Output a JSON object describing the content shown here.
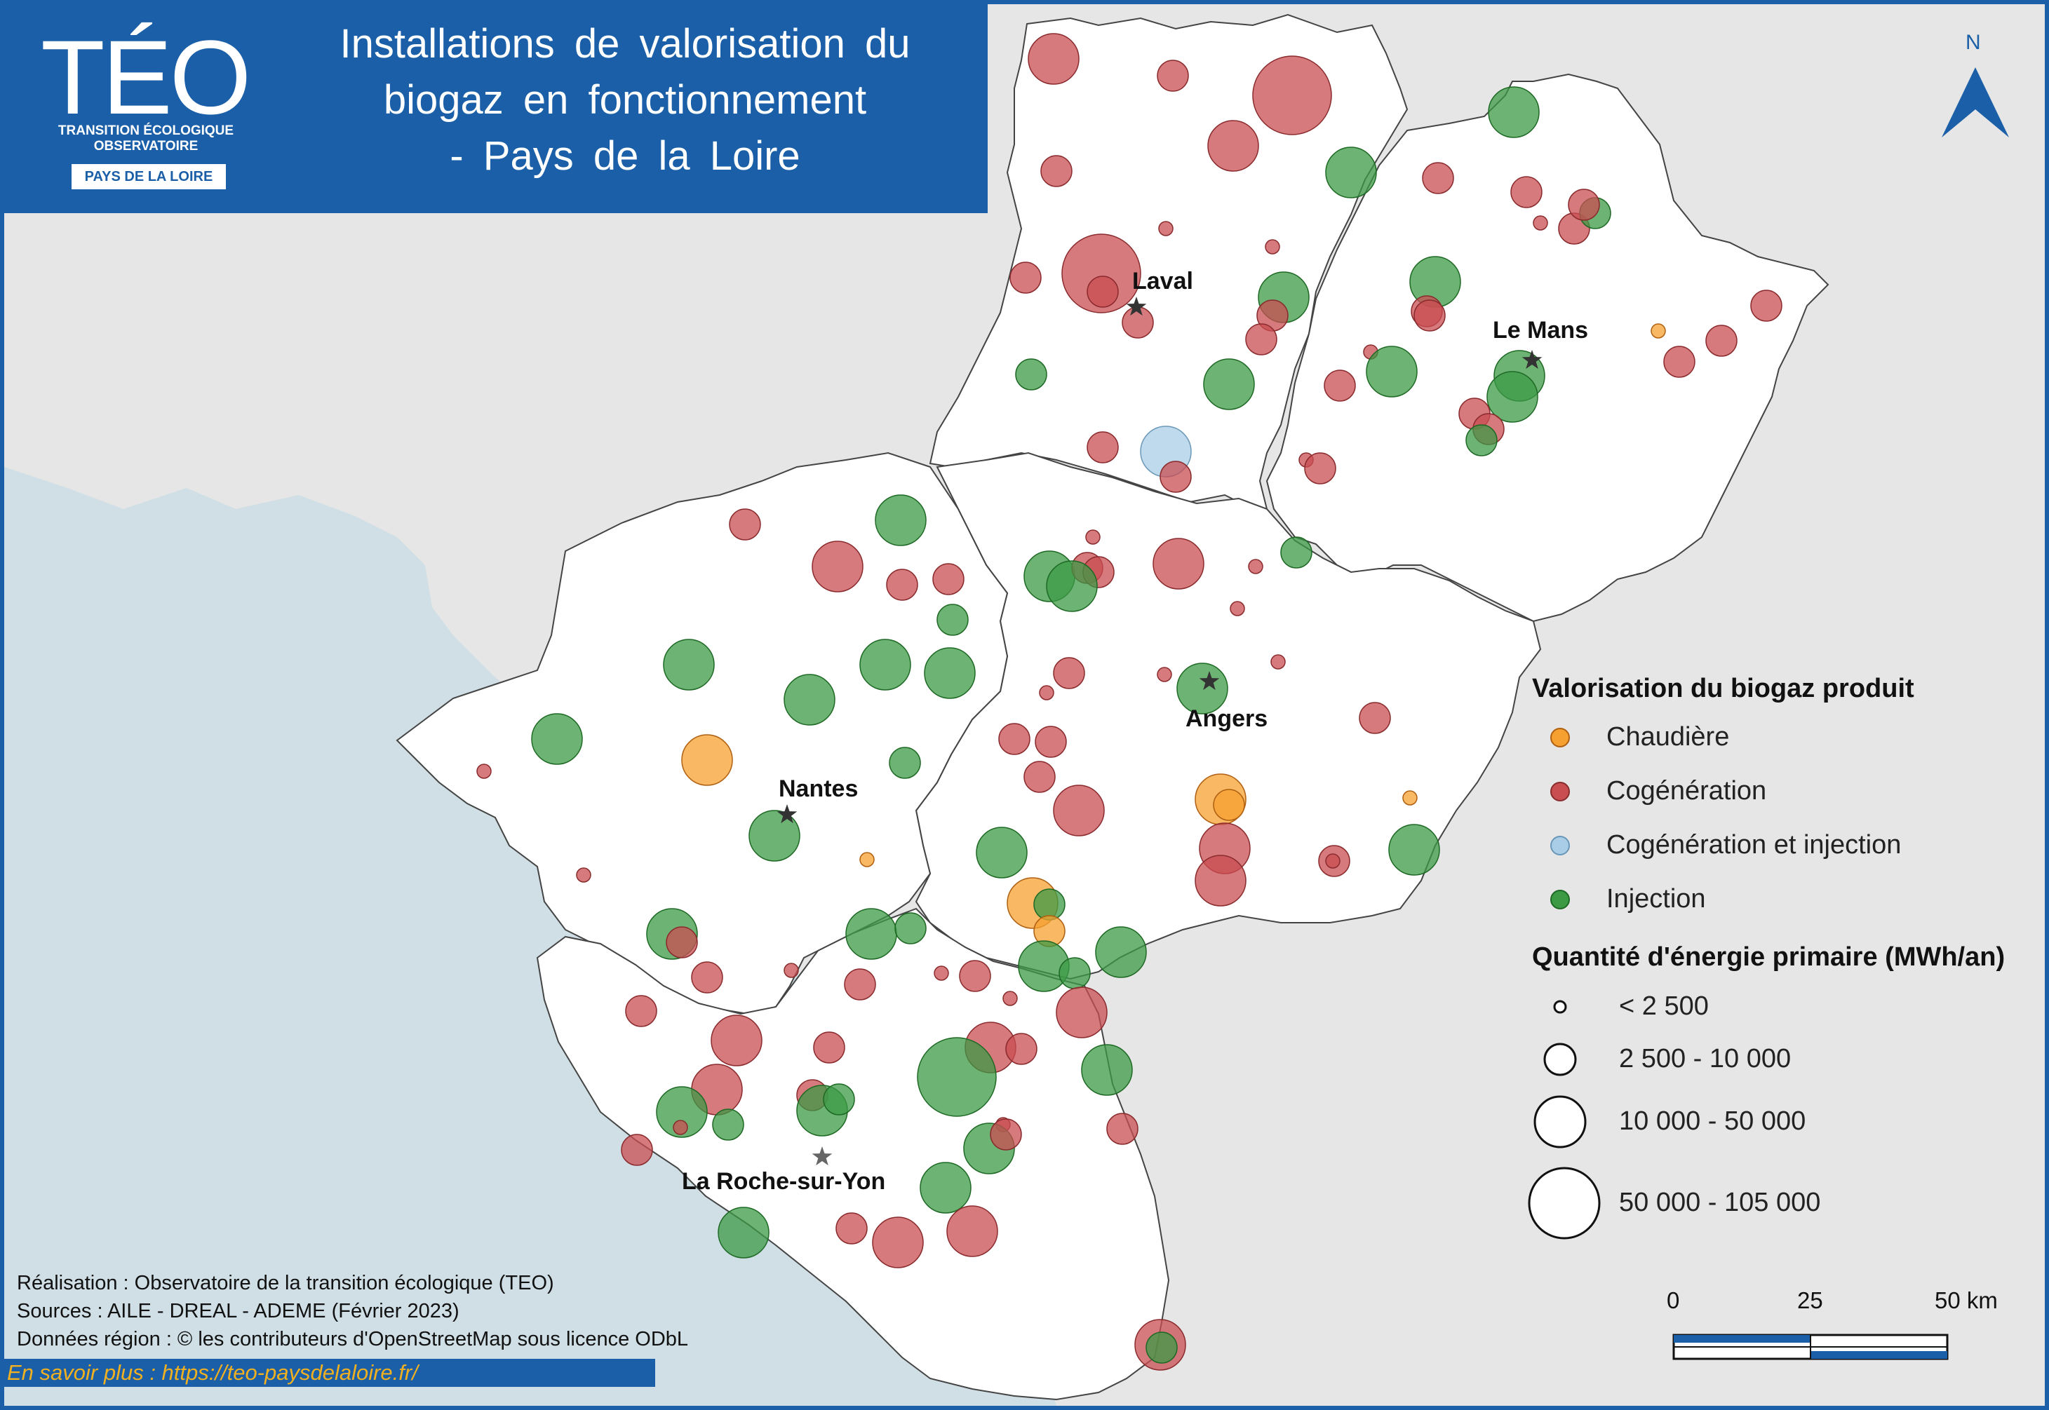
{
  "header": {
    "logo": "TÉO",
    "logo_sub1": "TRANSITION ÉCOLOGIQUE",
    "logo_sub2": "OBSERVATOIRE",
    "logo_region": "PAYS DE LA LOIRE",
    "title_lines": [
      "Installations de valorisation du",
      "biogaz en fonctionnement",
      "- Pays de la Loire"
    ]
  },
  "north_label": "N",
  "cities": [
    {
      "name": "Laval",
      "star_fill": "#333333"
    },
    {
      "name": "Le Mans",
      "star_fill": "#333333"
    },
    {
      "name": "Angers",
      "star_fill": "#333333"
    },
    {
      "name": "Nantes",
      "star_fill": "#333333"
    },
    {
      "name": "La Roche-sur-Yon",
      "star_fill": "#666666"
    }
  ],
  "legend": {
    "type_title": "Valorisation du biogaz produit",
    "types": [
      {
        "label": "Chaudière",
        "color": "#f5a030"
      },
      {
        "label": "Cogénération",
        "color": "#c94e52"
      },
      {
        "label": "Cogénération et injection",
        "color": "#a9cde6"
      },
      {
        "label": "Injection",
        "color": "#3c9a45"
      }
    ],
    "size_title": "Quantité d'énergie primaire (MWh/an)",
    "sizes": [
      "< 2 500",
      "2 500 - 10 000",
      "10 000 - 50 000",
      "50 000 - 105 000"
    ]
  },
  "scale_bar": {
    "labels": [
      "0",
      "25",
      "50 km"
    ]
  },
  "credits": [
    "Réalisation : Observatoire de la transition écologique (TEO)",
    "Sources : AILE - DREAL - ADEME (Février 2023)",
    "Données région : © les contributeurs d'OpenStreetMap sous licence ODbL"
  ],
  "more_link": "En savoir plus : https://teo-paysdelaloire.fr/",
  "colors": {
    "frame": "#1a5fa8",
    "sea": "#cfdfe5",
    "land_outside": "#e6e6e6",
    "region": "#ffffff",
    "chaudiere": "#f5a030",
    "cogeneration": "#c94e52",
    "cogeneration_injection": "#a9cde6",
    "injection": "#3c9a45"
  }
}
